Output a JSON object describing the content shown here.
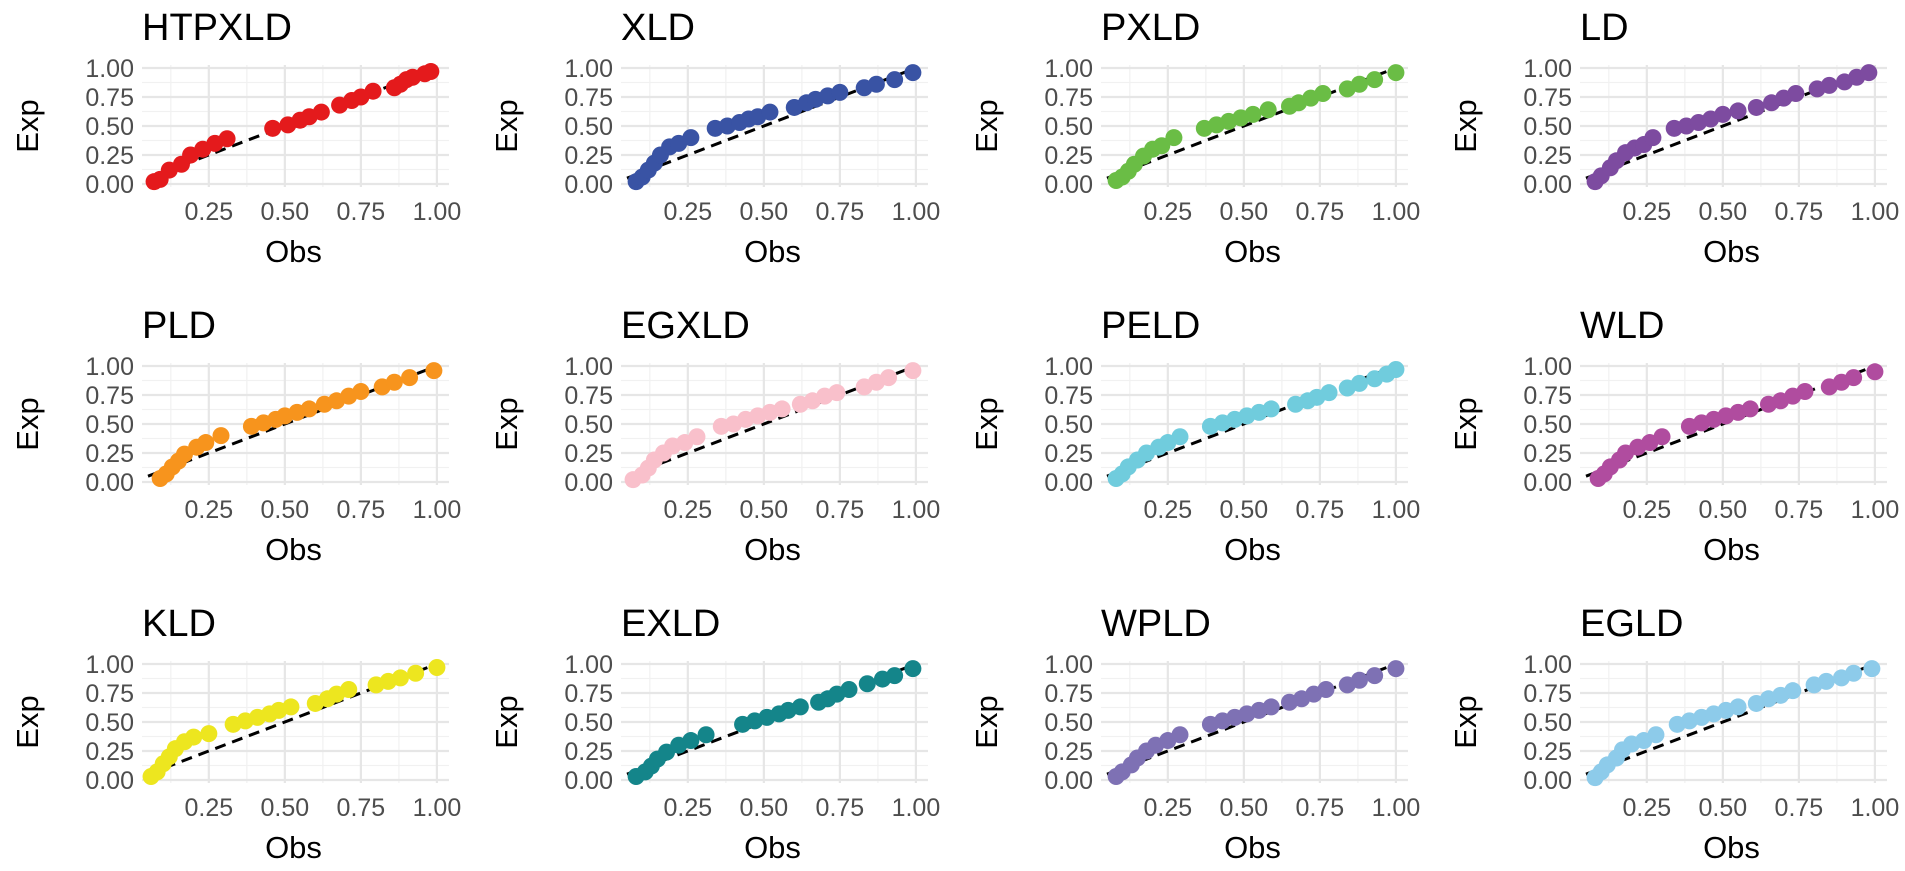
{
  "chart_data": [
    {
      "type": "scatter",
      "title": "HTPXLD",
      "xlabel": "Obs",
      "ylabel": "Exp",
      "color": "#E41A1C",
      "xlim": [
        0.05,
        1.02
      ],
      "ylim": [
        0,
        1
      ],
      "xticks": [
        "0.25",
        "0.50",
        "0.75",
        "1.00"
      ],
      "yticks": [
        "0.00",
        "0.25",
        "0.50",
        "0.75",
        "1.00"
      ],
      "reference_line": "y = x",
      "x": [
        0.07,
        0.09,
        0.12,
        0.16,
        0.19,
        0.23,
        0.27,
        0.31,
        0.46,
        0.51,
        0.55,
        0.58,
        0.62,
        0.68,
        0.72,
        0.75,
        0.79,
        0.86,
        0.88,
        0.9,
        0.92,
        0.96,
        0.98
      ],
      "y": [
        0.02,
        0.04,
        0.12,
        0.17,
        0.25,
        0.3,
        0.35,
        0.39,
        0.48,
        0.51,
        0.55,
        0.58,
        0.62,
        0.68,
        0.72,
        0.75,
        0.8,
        0.83,
        0.86,
        0.9,
        0.92,
        0.95,
        0.97
      ]
    },
    {
      "type": "scatter",
      "title": "XLD",
      "xlabel": "Obs",
      "ylabel": "Exp",
      "color": "#3953A4",
      "xlim": [
        0.05,
        1.02
      ],
      "ylim": [
        0,
        1
      ],
      "xticks": [
        "0.25",
        "0.50",
        "0.75",
        "1.00"
      ],
      "yticks": [
        "0.00",
        "0.25",
        "0.50",
        "0.75",
        "1.00"
      ],
      "reference_line": "y = x",
      "x": [
        0.08,
        0.1,
        0.12,
        0.14,
        0.16,
        0.19,
        0.22,
        0.26,
        0.34,
        0.38,
        0.42,
        0.45,
        0.48,
        0.52,
        0.6,
        0.64,
        0.67,
        0.71,
        0.75,
        0.83,
        0.87,
        0.93,
        0.99
      ],
      "y": [
        0.02,
        0.06,
        0.12,
        0.18,
        0.25,
        0.32,
        0.35,
        0.4,
        0.48,
        0.5,
        0.53,
        0.56,
        0.58,
        0.62,
        0.66,
        0.7,
        0.73,
        0.76,
        0.79,
        0.83,
        0.86,
        0.9,
        0.96
      ]
    },
    {
      "type": "scatter",
      "title": "PXLD",
      "xlabel": "Obs",
      "ylabel": "Exp",
      "color": "#6ABD45",
      "xlim": [
        0.05,
        1.02
      ],
      "ylim": [
        0,
        1
      ],
      "xticks": [
        "0.25",
        "0.50",
        "0.75",
        "1.00"
      ],
      "yticks": [
        "0.00",
        "0.25",
        "0.50",
        "0.75",
        "1.00"
      ],
      "reference_line": "y = x",
      "x": [
        0.08,
        0.1,
        0.12,
        0.14,
        0.17,
        0.2,
        0.23,
        0.27,
        0.37,
        0.41,
        0.45,
        0.49,
        0.53,
        0.58,
        0.65,
        0.68,
        0.72,
        0.76,
        0.84,
        0.88,
        0.93,
        1.0
      ],
      "y": [
        0.03,
        0.06,
        0.11,
        0.17,
        0.24,
        0.3,
        0.33,
        0.4,
        0.48,
        0.51,
        0.54,
        0.57,
        0.6,
        0.64,
        0.67,
        0.7,
        0.74,
        0.78,
        0.82,
        0.86,
        0.9,
        0.96
      ]
    },
    {
      "type": "scatter",
      "title": "LD",
      "xlabel": "Obs",
      "ylabel": "Exp",
      "color": "#7D4BA0",
      "xlim": [
        0.05,
        1.02
      ],
      "ylim": [
        0,
        1
      ],
      "xticks": [
        "0.25",
        "0.50",
        "0.75",
        "1.00"
      ],
      "yticks": [
        "0.00",
        "0.25",
        "0.50",
        "0.75",
        "1.00"
      ],
      "reference_line": "y = x",
      "x": [
        0.08,
        0.1,
        0.13,
        0.15,
        0.18,
        0.21,
        0.24,
        0.27,
        0.34,
        0.38,
        0.42,
        0.46,
        0.5,
        0.55,
        0.61,
        0.66,
        0.7,
        0.74,
        0.81,
        0.85,
        0.9,
        0.94,
        0.98
      ],
      "y": [
        0.02,
        0.07,
        0.14,
        0.2,
        0.27,
        0.31,
        0.34,
        0.4,
        0.48,
        0.5,
        0.53,
        0.56,
        0.6,
        0.63,
        0.66,
        0.7,
        0.74,
        0.78,
        0.82,
        0.85,
        0.88,
        0.92,
        0.96
      ]
    },
    {
      "type": "scatter",
      "title": "PLD",
      "xlabel": "Obs",
      "ylabel": "Exp",
      "color": "#F7941D",
      "xlim": [
        0.05,
        1.02
      ],
      "ylim": [
        0,
        1
      ],
      "xticks": [
        "0.25",
        "0.50",
        "0.75",
        "1.00"
      ],
      "yticks": [
        "0.00",
        "0.25",
        "0.50",
        "0.75",
        "1.00"
      ],
      "reference_line": "y = x",
      "x": [
        0.09,
        0.11,
        0.13,
        0.15,
        0.17,
        0.21,
        0.24,
        0.29,
        0.39,
        0.43,
        0.47,
        0.5,
        0.54,
        0.58,
        0.63,
        0.67,
        0.71,
        0.75,
        0.82,
        0.86,
        0.91,
        0.99
      ],
      "y": [
        0.03,
        0.07,
        0.13,
        0.18,
        0.24,
        0.3,
        0.34,
        0.4,
        0.48,
        0.51,
        0.54,
        0.57,
        0.6,
        0.63,
        0.67,
        0.7,
        0.74,
        0.78,
        0.82,
        0.86,
        0.9,
        0.96
      ]
    },
    {
      "type": "scatter",
      "title": "EGXLD",
      "xlabel": "Obs",
      "ylabel": "Exp",
      "color": "#F9C0CB",
      "xlim": [
        0.05,
        1.02
      ],
      "ylim": [
        0,
        1
      ],
      "xticks": [
        "0.25",
        "0.50",
        "0.75",
        "1.00"
      ],
      "yticks": [
        "0.00",
        "0.25",
        "0.50",
        "0.75",
        "1.00"
      ],
      "reference_line": "y = x",
      "x": [
        0.07,
        0.1,
        0.12,
        0.14,
        0.17,
        0.2,
        0.24,
        0.28,
        0.36,
        0.4,
        0.44,
        0.48,
        0.52,
        0.56,
        0.62,
        0.66,
        0.7,
        0.74,
        0.83,
        0.87,
        0.91,
        0.99
      ],
      "y": [
        0.02,
        0.06,
        0.12,
        0.19,
        0.25,
        0.31,
        0.34,
        0.39,
        0.48,
        0.5,
        0.54,
        0.57,
        0.6,
        0.63,
        0.67,
        0.7,
        0.74,
        0.77,
        0.82,
        0.86,
        0.9,
        0.96
      ]
    },
    {
      "type": "scatter",
      "title": "PELD",
      "xlabel": "Obs",
      "ylabel": "Exp",
      "color": "#70CCDD",
      "xlim": [
        0.05,
        1.02
      ],
      "ylim": [
        0,
        1
      ],
      "xticks": [
        "0.25",
        "0.50",
        "0.75",
        "1.00"
      ],
      "yticks": [
        "0.00",
        "0.25",
        "0.50",
        "0.75",
        "1.00"
      ],
      "reference_line": "y = x",
      "x": [
        0.08,
        0.1,
        0.12,
        0.15,
        0.18,
        0.22,
        0.25,
        0.29,
        0.39,
        0.43,
        0.47,
        0.51,
        0.55,
        0.59,
        0.67,
        0.71,
        0.74,
        0.78,
        0.84,
        0.88,
        0.93,
        0.97,
        1.0
      ],
      "y": [
        0.03,
        0.07,
        0.13,
        0.19,
        0.25,
        0.3,
        0.34,
        0.39,
        0.48,
        0.51,
        0.54,
        0.57,
        0.6,
        0.63,
        0.67,
        0.7,
        0.73,
        0.77,
        0.81,
        0.85,
        0.89,
        0.93,
        0.97
      ]
    },
    {
      "type": "scatter",
      "title": "WLD",
      "xlabel": "Obs",
      "ylabel": "Exp",
      "color": "#B04C9F",
      "xlim": [
        0.05,
        1.02
      ],
      "ylim": [
        0,
        1
      ],
      "xticks": [
        "0.25",
        "0.50",
        "0.75",
        "1.00"
      ],
      "yticks": [
        "0.00",
        "0.25",
        "0.50",
        "0.75",
        "1.00"
      ],
      "reference_line": "y = x",
      "x": [
        0.09,
        0.11,
        0.13,
        0.16,
        0.18,
        0.22,
        0.26,
        0.3,
        0.39,
        0.43,
        0.47,
        0.51,
        0.55,
        0.59,
        0.65,
        0.69,
        0.73,
        0.77,
        0.85,
        0.89,
        0.93,
        1.0
      ],
      "y": [
        0.03,
        0.07,
        0.13,
        0.19,
        0.25,
        0.3,
        0.34,
        0.39,
        0.48,
        0.51,
        0.54,
        0.57,
        0.6,
        0.63,
        0.67,
        0.7,
        0.74,
        0.78,
        0.82,
        0.86,
        0.9,
        0.95
      ]
    },
    {
      "type": "scatter",
      "title": "KLD",
      "xlabel": "Obs",
      "ylabel": "Exp",
      "color": "#EDE61F",
      "xlim": [
        0.05,
        1.02
      ],
      "ylim": [
        0,
        1
      ],
      "xticks": [
        "0.25",
        "0.50",
        "0.75",
        "1.00"
      ],
      "yticks": [
        "0.00",
        "0.25",
        "0.50",
        "0.75",
        "1.00"
      ],
      "reference_line": "y = x",
      "x": [
        0.06,
        0.08,
        0.1,
        0.12,
        0.14,
        0.17,
        0.2,
        0.25,
        0.33,
        0.37,
        0.41,
        0.45,
        0.48,
        0.52,
        0.6,
        0.64,
        0.67,
        0.71,
        0.8,
        0.84,
        0.88,
        0.93,
        1.0
      ],
      "y": [
        0.03,
        0.07,
        0.14,
        0.2,
        0.27,
        0.33,
        0.37,
        0.4,
        0.48,
        0.51,
        0.54,
        0.57,
        0.6,
        0.63,
        0.66,
        0.7,
        0.74,
        0.78,
        0.82,
        0.85,
        0.88,
        0.92,
        0.97
      ]
    },
    {
      "type": "scatter",
      "title": "EXLD",
      "xlabel": "Obs",
      "ylabel": "Exp",
      "color": "#14858A",
      "xlim": [
        0.05,
        1.02
      ],
      "ylim": [
        0,
        1
      ],
      "xticks": [
        "0.25",
        "0.50",
        "0.75",
        "1.00"
      ],
      "yticks": [
        "0.00",
        "0.25",
        "0.50",
        "0.75",
        "1.00"
      ],
      "reference_line": "y = x",
      "x": [
        0.08,
        0.11,
        0.13,
        0.15,
        0.18,
        0.22,
        0.26,
        0.31,
        0.43,
        0.47,
        0.51,
        0.55,
        0.58,
        0.62,
        0.68,
        0.71,
        0.74,
        0.78,
        0.84,
        0.89,
        0.93,
        0.99
      ],
      "y": [
        0.03,
        0.07,
        0.12,
        0.18,
        0.24,
        0.3,
        0.34,
        0.39,
        0.48,
        0.51,
        0.54,
        0.57,
        0.6,
        0.63,
        0.67,
        0.7,
        0.74,
        0.78,
        0.83,
        0.87,
        0.9,
        0.96
      ]
    },
    {
      "type": "scatter",
      "title": "WPLD",
      "xlabel": "Obs",
      "ylabel": "Exp",
      "color": "#7E71B4",
      "xlim": [
        0.05,
        1.02
      ],
      "ylim": [
        0,
        1
      ],
      "xticks": [
        "0.25",
        "0.50",
        "0.75",
        "1.00"
      ],
      "yticks": [
        "0.00",
        "0.25",
        "0.50",
        "0.75",
        "1.00"
      ],
      "reference_line": "y = x",
      "x": [
        0.08,
        0.1,
        0.13,
        0.15,
        0.18,
        0.21,
        0.25,
        0.29,
        0.39,
        0.43,
        0.47,
        0.51,
        0.55,
        0.59,
        0.65,
        0.69,
        0.73,
        0.77,
        0.84,
        0.88,
        0.93,
        1.0
      ],
      "y": [
        0.03,
        0.07,
        0.13,
        0.19,
        0.25,
        0.3,
        0.34,
        0.39,
        0.48,
        0.51,
        0.54,
        0.57,
        0.6,
        0.63,
        0.67,
        0.7,
        0.74,
        0.78,
        0.82,
        0.86,
        0.9,
        0.96
      ]
    },
    {
      "type": "scatter",
      "title": "EGLD",
      "xlabel": "Obs",
      "ylabel": "Exp",
      "color": "#8DCBEA",
      "xlim": [
        0.05,
        1.02
      ],
      "ylim": [
        0,
        1
      ],
      "xticks": [
        "0.25",
        "0.50",
        "0.75",
        "1.00"
      ],
      "yticks": [
        "0.00",
        "0.25",
        "0.50",
        "0.75",
        "1.00"
      ],
      "reference_line": "y = x",
      "x": [
        0.08,
        0.1,
        0.12,
        0.15,
        0.17,
        0.2,
        0.24,
        0.28,
        0.35,
        0.39,
        0.43,
        0.47,
        0.51,
        0.55,
        0.61,
        0.65,
        0.69,
        0.73,
        0.8,
        0.84,
        0.89,
        0.93,
        0.99
      ],
      "y": [
        0.02,
        0.07,
        0.13,
        0.19,
        0.26,
        0.31,
        0.34,
        0.39,
        0.48,
        0.51,
        0.54,
        0.57,
        0.6,
        0.63,
        0.66,
        0.7,
        0.73,
        0.77,
        0.82,
        0.85,
        0.88,
        0.92,
        0.96
      ]
    }
  ]
}
